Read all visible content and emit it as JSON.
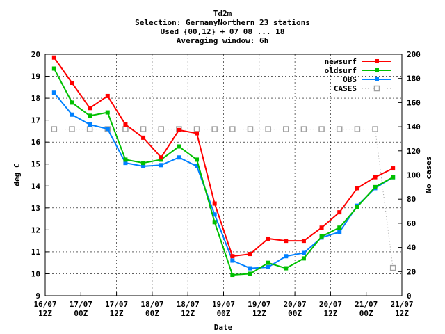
{
  "chart_data": {
    "type": "line",
    "title_lines": [
      "Td2m",
      "Selection: GermanyNorthern     23 stations",
      "Used {00,12} + 07 08 ... 18",
      "Averaging window:  6h"
    ],
    "xlabel": "Date",
    "ylabel": "deg C",
    "y2label": "No cases",
    "ylim": [
      9,
      20
    ],
    "y2lim": [
      0,
      200
    ],
    "yticks": [
      9,
      10,
      11,
      12,
      13,
      14,
      15,
      16,
      17,
      18,
      19,
      20
    ],
    "y2ticks": [
      0,
      20,
      40,
      60,
      80,
      100,
      120,
      140,
      160,
      180,
      200
    ],
    "xlim": [
      0,
      100
    ],
    "xticks": [
      {
        "x": 0,
        "line1": "16/07",
        "line2": "12Z"
      },
      {
        "x": 10,
        "line1": "17/07",
        "line2": "00Z"
      },
      {
        "x": 20,
        "line1": "17/07",
        "line2": "12Z"
      },
      {
        "x": 30,
        "line1": "18/07",
        "line2": "00Z"
      },
      {
        "x": 40,
        "line1": "18/07",
        "line2": "12Z"
      },
      {
        "x": 50,
        "line1": "19/07",
        "line2": "00Z"
      },
      {
        "x": 60,
        "line1": "19/07",
        "line2": "12Z"
      },
      {
        "x": 70,
        "line1": "20/07",
        "line2": "00Z"
      },
      {
        "x": 80,
        "line1": "20/07",
        "line2": "12Z"
      },
      {
        "x": 90,
        "line1": "21/07",
        "line2": "00Z"
      },
      {
        "x": 100,
        "line1": "21/07",
        "line2": "12Z"
      }
    ],
    "grid": true,
    "legend_position": "top-right",
    "x": [
      2.5,
      7.5,
      12.5,
      17.5,
      22.5,
      27.5,
      32.5,
      37.5,
      42.5,
      47.5,
      52.5,
      57.5,
      62.5,
      67.5,
      72.5,
      77.5,
      82.5,
      87.5,
      92.5,
      97.5
    ],
    "series": [
      {
        "name": "newsurf",
        "color": "#ff0000",
        "marker": "filled-square",
        "axis": "left",
        "values": [
          19.85,
          18.7,
          17.55,
          18.1,
          16.8,
          16.2,
          15.3,
          16.55,
          16.4,
          13.2,
          10.8,
          10.9,
          11.6,
          11.5,
          11.5,
          12.1,
          12.8,
          13.9,
          14.4,
          14.8
        ]
      },
      {
        "name": "oldsurf",
        "color": "#00c000",
        "marker": "filled-square",
        "axis": "left",
        "values": [
          19.35,
          17.8,
          17.2,
          17.35,
          15.2,
          15.05,
          15.2,
          15.8,
          15.2,
          12.35,
          9.95,
          10.0,
          10.5,
          10.25,
          10.7,
          11.7,
          12.1,
          13.05,
          13.95,
          14.4
        ]
      },
      {
        "name": "OBS",
        "color": "#0080ff",
        "marker": "filled-square",
        "axis": "left",
        "values": [
          18.25,
          17.25,
          16.8,
          16.6,
          15.05,
          14.9,
          14.95,
          15.3,
          14.9,
          12.7,
          10.6,
          10.25,
          10.3,
          10.8,
          10.95,
          11.65,
          11.9,
          13.1,
          13.9,
          14.4
        ]
      },
      {
        "name": "CASES",
        "color": "#a0a0a0",
        "marker": "open-square",
        "axis": "right",
        "dotted": true,
        "values": [
          138,
          138,
          138,
          138,
          138,
          138,
          138,
          138,
          138,
          138,
          138,
          138,
          138,
          138,
          138,
          138,
          138,
          138,
          138,
          23
        ]
      }
    ]
  }
}
